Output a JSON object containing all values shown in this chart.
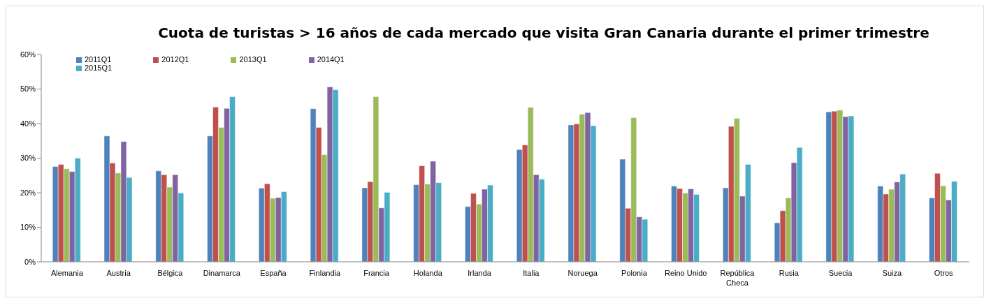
{
  "chart_data": {
    "type": "bar",
    "title": "Cuota de turistas > 16 años de cada mercado que visita Gran Canaria durante el primer trimestre",
    "categories": [
      "Alemania",
      "Austria",
      "Bélgica",
      "Dinamarca",
      "España",
      "Finlandia",
      "Francia",
      "Holanda",
      "Irlanda",
      "Italia",
      "Noruega",
      "Polonia",
      "Reino Unido",
      "República Checa",
      "Rusia",
      "Suecia",
      "Suiza",
      "Otros"
    ],
    "series": [
      {
        "name": "2011Q1",
        "color": "#4f81bd",
        "values": [
          27.6,
          36.4,
          26.3,
          36.4,
          21.3,
          44.3,
          21.4,
          22.3,
          16.0,
          32.5,
          39.6,
          29.7,
          21.9,
          21.4,
          11.3,
          43.4,
          21.9,
          18.5
        ]
      },
      {
        "name": "2012Q1",
        "color": "#c0504d",
        "values": [
          28.2,
          28.6,
          25.2,
          44.8,
          22.6,
          38.9,
          23.2,
          27.8,
          19.8,
          33.8,
          39.9,
          15.5,
          21.2,
          39.2,
          14.8,
          43.6,
          19.6,
          25.6
        ]
      },
      {
        "name": "2013Q1",
        "color": "#9bbb59",
        "values": [
          26.9,
          25.7,
          21.6,
          38.9,
          18.4,
          31.0,
          47.8,
          22.5,
          16.7,
          44.7,
          42.7,
          41.7,
          19.9,
          41.5,
          18.5,
          43.9,
          21.0,
          22.0
        ]
      },
      {
        "name": "2014Q1",
        "color": "#8064a2",
        "values": [
          26.1,
          34.8,
          25.2,
          44.4,
          18.6,
          50.6,
          15.6,
          29.1,
          21.0,
          25.2,
          43.2,
          13.0,
          21.1,
          19.0,
          28.7,
          42.0,
          23.1,
          17.9
        ]
      },
      {
        "name": "2015Q1",
        "color": "#4bacc6",
        "values": [
          30.0,
          24.4,
          19.9,
          47.8,
          20.3,
          49.8,
          20.1,
          22.9,
          22.2,
          23.9,
          39.4,
          12.3,
          19.5,
          28.2,
          33.1,
          42.2,
          25.4,
          23.3
        ]
      }
    ],
    "ylim": [
      0,
      60
    ],
    "yticks": [
      {
        "value": 0,
        "label": "0%"
      },
      {
        "value": 10,
        "label": "10%"
      },
      {
        "value": 20,
        "label": "20%"
      },
      {
        "value": 30,
        "label": "30%"
      },
      {
        "value": 40,
        "label": "40%"
      },
      {
        "value": 50,
        "label": "50%"
      },
      {
        "value": 60,
        "label": "60%"
      }
    ],
    "grid": false,
    "legend": "top left"
  }
}
